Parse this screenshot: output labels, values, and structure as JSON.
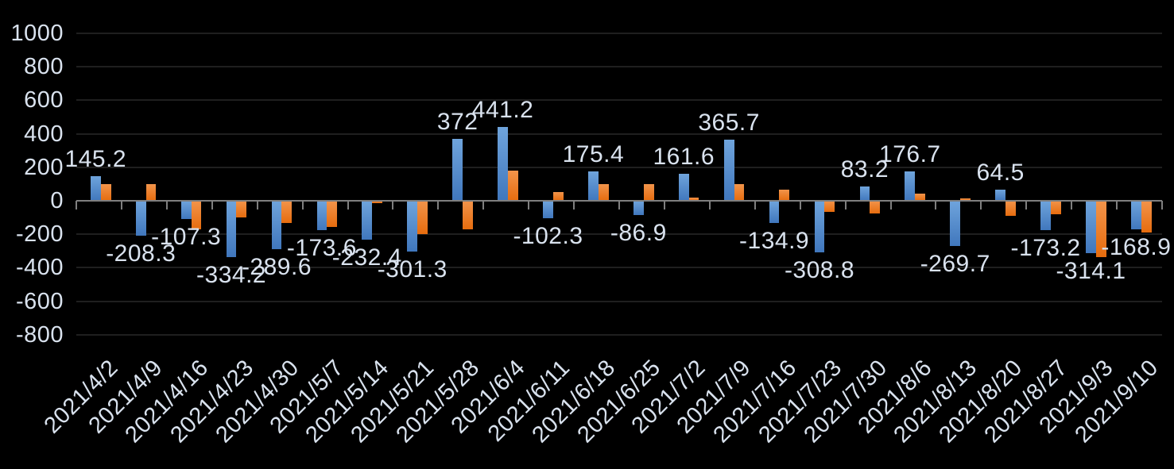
{
  "chart_data": {
    "type": "bar",
    "title": "",
    "categories": [
      "2021/4/2",
      "2021/4/9",
      "2021/4/16",
      "2021/4/23",
      "2021/4/30",
      "2021/5/7",
      "2021/5/14",
      "2021/5/21",
      "2021/5/28",
      "2021/6/4",
      "2021/6/11",
      "2021/6/18",
      "2021/6/25",
      "2021/7/2",
      "2021/7/9",
      "2021/7/16",
      "2021/7/23",
      "2021/7/30",
      "2021/8/6",
      "2021/8/13",
      "2021/8/20",
      "2021/8/27",
      "2021/9/3",
      "2021/9/10"
    ],
    "series": [
      {
        "name": "series-1-blue",
        "color": "#5B9BD5",
        "gradient_top": "#6FA4DC",
        "gradient_bottom": "#4077BD",
        "values": [
          145.2,
          -208.3,
          -107.3,
          -334.2,
          -289.6,
          -173.6,
          -232.4,
          -301.3,
          372,
          441.2,
          -102.3,
          175.4,
          -86.9,
          161.6,
          365.7,
          -134.9,
          -308.8,
          83.2,
          176.7,
          -269.7,
          64.5,
          -173.2,
          -314.1,
          -168.9
        ],
        "data_labels": [
          "145.2",
          "-208.3",
          "-107.3",
          "-334.2",
          "-289.6",
          "-173.6",
          "-232.4",
          "-301.3",
          "372",
          "441.2",
          "-102.3",
          "175.4",
          "-86.9",
          "161.6",
          "365.7",
          "-134.9",
          "-308.8",
          "83.2",
          "176.7",
          "-269.7",
          "64.5",
          "-173.2",
          "-314.1",
          "-168.9"
        ]
      },
      {
        "name": "series-2-orange",
        "color": "#ED7D31",
        "gradient_top": "#F2944B",
        "gradient_bottom": "#E66C0E",
        "values": [
          100,
          100,
          -170,
          -100,
          -135,
          -155,
          -15,
          -200,
          -170,
          180,
          50,
          100,
          100,
          20,
          100,
          65,
          -65,
          -75,
          45,
          15,
          -90,
          -80,
          -335,
          -190
        ],
        "data_labels": null
      }
    ],
    "y_axis": {
      "min": -800,
      "max": 1000,
      "step": 200,
      "tick_labels": [
        "1000",
        "800",
        "600",
        "400",
        "200",
        "0",
        "-200",
        "-400",
        "-600",
        "-800"
      ]
    },
    "x_axis": {
      "label_rotation_deg": -45
    },
    "grid": true,
    "legend": false,
    "colors": {
      "background": "#000000",
      "gridline": "#1f1f1f",
      "axis_line": "#7f7f7f",
      "tick": "#7f7f7f",
      "text": "#d9e2ee"
    }
  }
}
